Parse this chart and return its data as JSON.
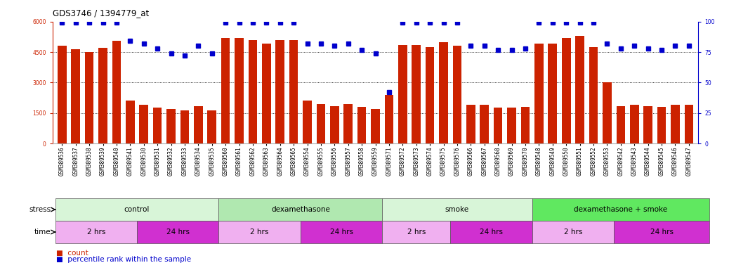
{
  "title": "GDS3746 / 1394779_at",
  "samples": [
    "GSM389536",
    "GSM389537",
    "GSM389538",
    "GSM389539",
    "GSM389540",
    "GSM389541",
    "GSM389530",
    "GSM389531",
    "GSM389532",
    "GSM389533",
    "GSM389534",
    "GSM389535",
    "GSM389560",
    "GSM389561",
    "GSM389562",
    "GSM389563",
    "GSM389564",
    "GSM389565",
    "GSM389554",
    "GSM389555",
    "GSM389556",
    "GSM389557",
    "GSM389558",
    "GSM389559",
    "GSM389571",
    "GSM389572",
    "GSM389573",
    "GSM389574",
    "GSM389575",
    "GSM389576",
    "GSM389566",
    "GSM389567",
    "GSM389568",
    "GSM389569",
    "GSM389570",
    "GSM389548",
    "GSM389549",
    "GSM389550",
    "GSM389551",
    "GSM389552",
    "GSM389553",
    "GSM389542",
    "GSM389543",
    "GSM389544",
    "GSM389545",
    "GSM389546",
    "GSM389547"
  ],
  "counts": [
    4800,
    4650,
    4500,
    4700,
    5050,
    2100,
    1900,
    1750,
    1700,
    1620,
    1820,
    1620,
    5200,
    5200,
    5100,
    4900,
    5100,
    5100,
    2100,
    1950,
    1850,
    1950,
    1800,
    1700,
    2400,
    4850,
    4850,
    4750,
    5000,
    4800,
    1900,
    1900,
    1750,
    1750,
    1800,
    4900,
    4900,
    5200,
    5300,
    4750,
    3000,
    1850,
    1900,
    1850,
    1800,
    1900,
    1900
  ],
  "percentile": [
    99,
    99,
    99,
    99,
    99,
    84,
    82,
    78,
    74,
    72,
    80,
    74,
    99,
    99,
    99,
    99,
    99,
    99,
    82,
    82,
    80,
    82,
    77,
    74,
    42,
    99,
    99,
    99,
    99,
    99,
    80,
    80,
    77,
    77,
    78,
    99,
    99,
    99,
    99,
    99,
    82,
    78,
    80,
    78,
    77,
    80,
    80
  ],
  "stress_groups": [
    {
      "label": "control",
      "start": 0,
      "end": 12,
      "color": "#d8f5d8"
    },
    {
      "label": "dexamethasone",
      "start": 12,
      "end": 24,
      "color": "#b0e8b0"
    },
    {
      "label": "smoke",
      "start": 24,
      "end": 35,
      "color": "#d8f5d8"
    },
    {
      "label": "dexamethasone + smoke",
      "start": 35,
      "end": 48,
      "color": "#60e860"
    }
  ],
  "time_groups": [
    {
      "label": "2 hrs",
      "start": 0,
      "end": 6,
      "color": "#f0b0f0"
    },
    {
      "label": "24 hrs",
      "start": 6,
      "end": 12,
      "color": "#d030d0"
    },
    {
      "label": "2 hrs",
      "start": 12,
      "end": 18,
      "color": "#f0b0f0"
    },
    {
      "label": "24 hrs",
      "start": 18,
      "end": 24,
      "color": "#d030d0"
    },
    {
      "label": "2 hrs",
      "start": 24,
      "end": 29,
      "color": "#f0b0f0"
    },
    {
      "label": "24 hrs",
      "start": 29,
      "end": 35,
      "color": "#d030d0"
    },
    {
      "label": "2 hrs",
      "start": 35,
      "end": 41,
      "color": "#f0b0f0"
    },
    {
      "label": "24 hrs",
      "start": 41,
      "end": 48,
      "color": "#d030d0"
    }
  ],
  "bar_color": "#cc2200",
  "dot_color": "#0000cc",
  "ylim_left": [
    0,
    6000
  ],
  "ylim_right": [
    0,
    100
  ],
  "yticks_left": [
    0,
    1500,
    3000,
    4500,
    6000
  ],
  "yticks_right": [
    0,
    25,
    50,
    75,
    100
  ],
  "grid_lines": [
    1500,
    3000,
    4500
  ],
  "background_color": "#ffffff",
  "label_fontsize": 7.5,
  "tick_fontsize": 5.5
}
